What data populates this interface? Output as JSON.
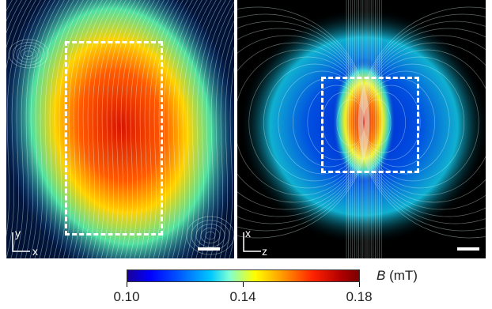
{
  "panels": [
    {
      "axis_vertical": "y",
      "axis_horizontal": "x"
    },
    {
      "axis_vertical": "x",
      "axis_horizontal": "z"
    }
  ],
  "colorbar": {
    "symbol": "B",
    "unit": "(mT)",
    "ticks": [
      "0.10",
      "0.14",
      "0.18"
    ],
    "colors": [
      "#1a0099",
      "#0000ff",
      "#00c8ff",
      "#ffff00",
      "#ff2200",
      "#7a0000"
    ]
  },
  "colors": {
    "dashed_box": "#ffffff",
    "background": "#000000"
  }
}
